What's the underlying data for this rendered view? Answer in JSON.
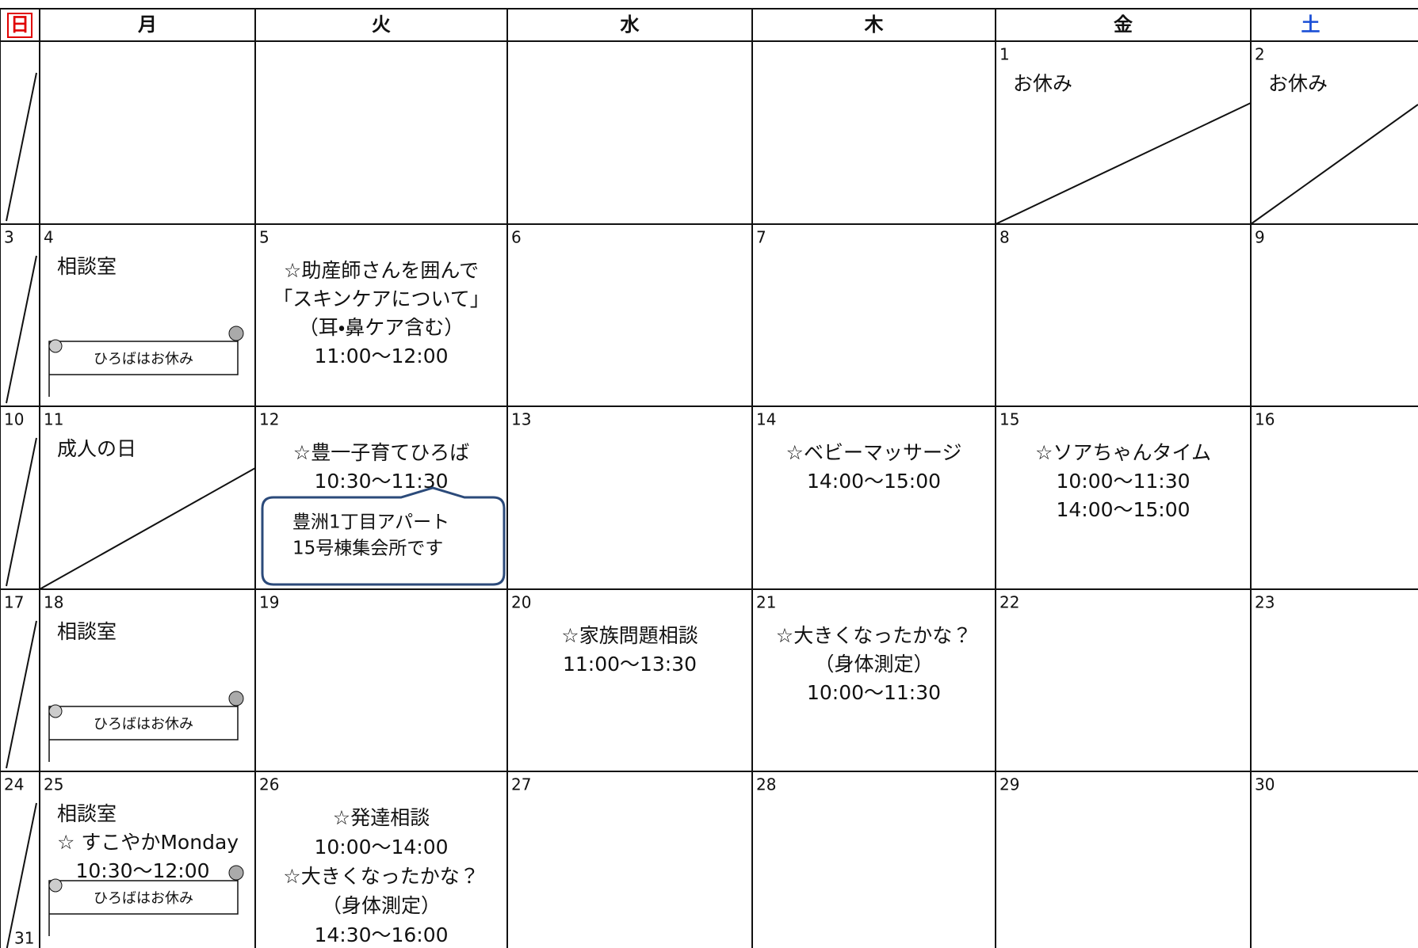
{
  "header": [
    "日",
    "月",
    "火",
    "水",
    "木",
    "金",
    "土"
  ],
  "weeks": [
    [
      {},
      {},
      {},
      {},
      {},
      {
        "day": "1",
        "lines": [
          "お休み"
        ]
      },
      {
        "day": "2",
        "lines": [
          "お休み"
        ]
      }
    ],
    [
      {
        "day": "3"
      },
      {
        "day": "4",
        "lines": [
          "相談室"
        ],
        "banner": "ひろばはお休み"
      },
      {
        "day": "5",
        "lines": [
          "☆助産師さんを囲んで",
          "「スキンケアについて」",
          "（耳・鼻ケア含む）",
          "11:00～12:00"
        ]
      },
      {
        "day": "6"
      },
      {
        "day": "7"
      },
      {
        "day": "8"
      },
      {
        "day": "9"
      }
    ],
    [
      {
        "day": "10"
      },
      {
        "day": "11",
        "lines": [
          "成人の日"
        ]
      },
      {
        "day": "12",
        "lines": [
          "☆豊一子育てひろば",
          "10:30～11:30"
        ],
        "note": [
          "豊洲1丁目アパート",
          "15号棟集会所です"
        ]
      },
      {
        "day": "13"
      },
      {
        "day": "14",
        "lines": [
          "☆ベビーマッサージ",
          "14:00～15:00"
        ]
      },
      {
        "day": "15",
        "lines": [
          "☆ソアちゃんタイム",
          "10:00～11:30",
          "14:00～15:00"
        ]
      },
      {
        "day": "16"
      }
    ],
    [
      {
        "day": "17"
      },
      {
        "day": "18",
        "lines": [
          "相談室"
        ],
        "banner": "ひろばはお休み"
      },
      {
        "day": "19"
      },
      {
        "day": "20",
        "lines": [
          "☆家族問題相談",
          "11:00～13:30"
        ]
      },
      {
        "day": "21",
        "lines": [
          "☆大きくなったかな？",
          "（身体測定）",
          "10:00～11:30"
        ]
      },
      {
        "day": "22"
      },
      {
        "day": "23"
      }
    ],
    [
      {
        "day": "24",
        "day2": "31"
      },
      {
        "day": "25",
        "lines": [
          "相談室",
          "☆ すこやかMonday",
          "10:30～12:00"
        ],
        "banner": "ひろばはお休み"
      },
      {
        "day": "26",
        "lines": [
          "☆発達相談",
          "10:00～14:00",
          "☆大きくなったかな？",
          "（身体測定）",
          "14:30～16:00"
        ]
      },
      {
        "day": "27"
      },
      {
        "day": "28"
      },
      {
        "day": "29"
      },
      {
        "day": "30"
      }
    ]
  ]
}
